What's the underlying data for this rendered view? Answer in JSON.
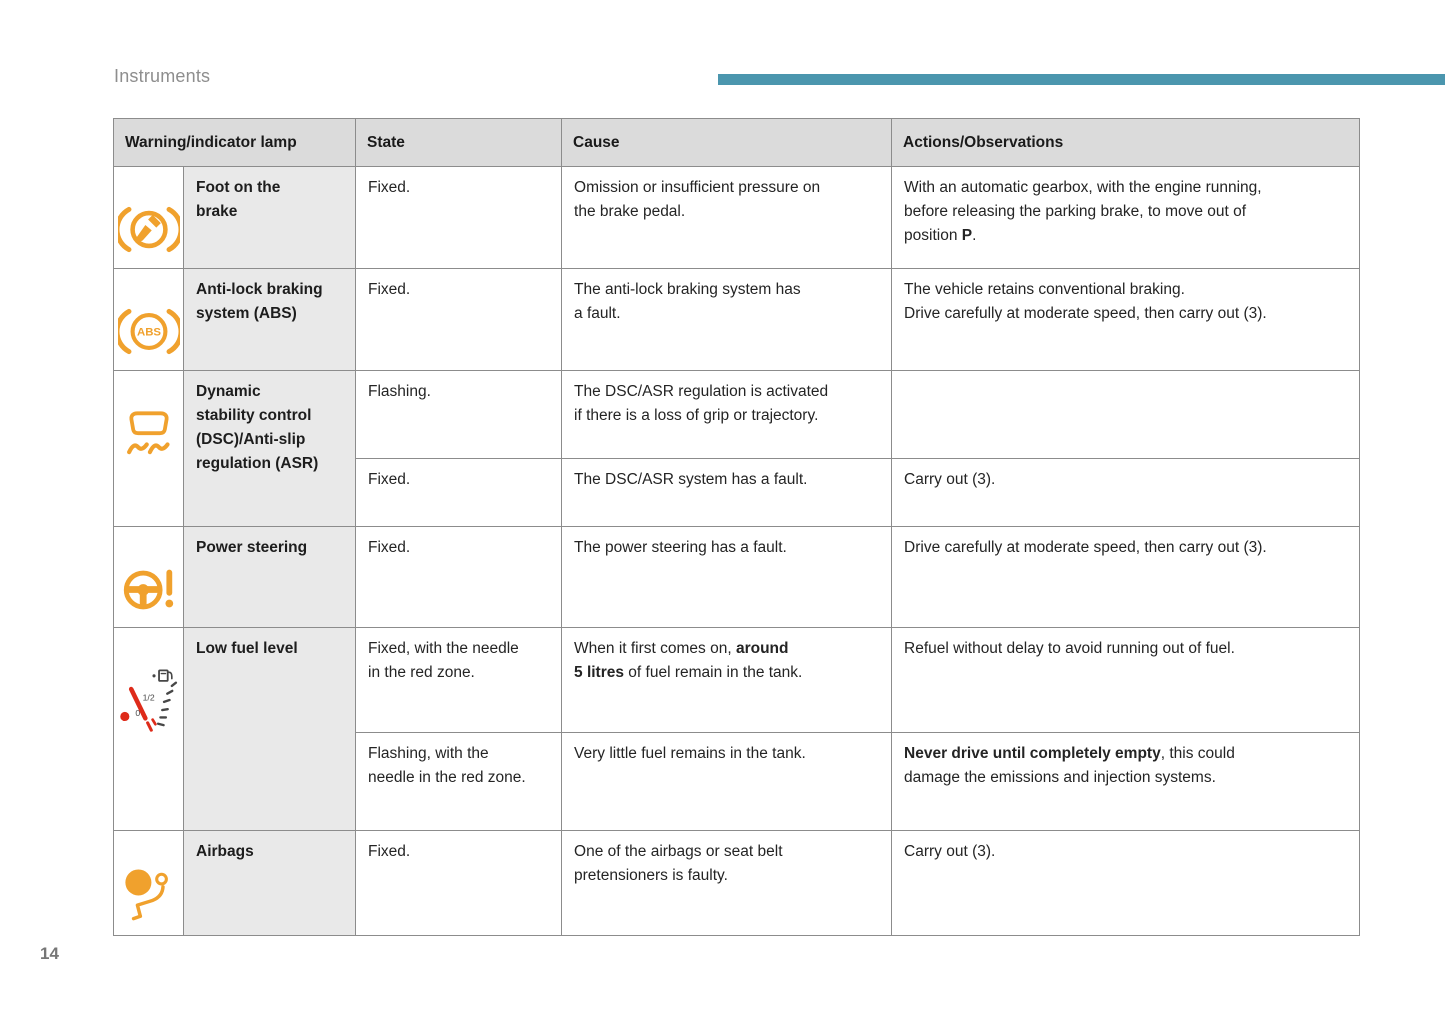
{
  "page": {
    "section_label": "Instruments",
    "page_number": "14"
  },
  "colors": {
    "accent_bar": "#4B96AE",
    "icon_orange": "#F0A12D",
    "needle_red": "#DE2B1A",
    "gauge_dark": "#474747",
    "header_bg": "#DBDBDB",
    "name_cell_bg": "#E9E9E9",
    "table_border": "#8C8C8C"
  },
  "table": {
    "headers": {
      "lamp": "Warning/indicator lamp",
      "state": "State",
      "cause": "Cause",
      "actions": "Actions/Observations"
    },
    "rows": [
      {
        "icon": "foot-on-brake-icon",
        "name": "Foot on the\nbrake",
        "entries": [
          {
            "state": [
              {
                "t": "Fixed."
              }
            ],
            "cause": [
              {
                "t": "Omission or insufficient pressure on\nthe brake pedal."
              }
            ],
            "actions": [
              {
                "t": "With an automatic gearbox, with the engine running,\nbefore releasing the parking brake, to move out of\nposition "
              },
              {
                "t": "P",
                "b": true
              },
              {
                "t": "."
              }
            ]
          }
        ]
      },
      {
        "icon": "abs-icon",
        "icon_text": "ABS",
        "name": "Anti-lock braking\nsystem (ABS)",
        "entries": [
          {
            "state": [
              {
                "t": "Fixed."
              }
            ],
            "cause": [
              {
                "t": "The anti-lock braking system has\na fault."
              }
            ],
            "actions": [
              {
                "t": "The vehicle retains conventional braking.\nDrive carefully at moderate speed, then carry out (3)."
              }
            ]
          }
        ]
      },
      {
        "icon": "dsc-asr-icon",
        "name": "Dynamic\nstability control\n(DSC)/Anti-slip\nregulation (ASR)",
        "entries": [
          {
            "state": [
              {
                "t": "Flashing."
              }
            ],
            "cause": [
              {
                "t": "The DSC/ASR regulation is activated\nif there is a loss of grip or trajectory."
              }
            ],
            "actions": []
          },
          {
            "state": [
              {
                "t": "Fixed."
              }
            ],
            "cause": [
              {
                "t": "The DSC/ASR system has a fault."
              }
            ],
            "actions": [
              {
                "t": "Carry out (3)."
              }
            ]
          }
        ]
      },
      {
        "icon": "power-steering-icon",
        "name": "Power steering",
        "entries": [
          {
            "state": [
              {
                "t": "Fixed."
              }
            ],
            "cause": [
              {
                "t": "The power steering has a fault."
              }
            ],
            "actions": [
              {
                "t": "Drive carefully at moderate speed, then carry out (3)."
              }
            ]
          }
        ]
      },
      {
        "icon": "low-fuel-gauge-icon",
        "gauge_labels": [
          "0",
          "1/2"
        ],
        "name": "Low fuel level",
        "entries": [
          {
            "state": [
              {
                "t": "Fixed, with the needle\nin the red zone."
              }
            ],
            "cause": [
              {
                "t": "When it first comes on, "
              },
              {
                "t": "around\n5 litres",
                "b": true
              },
              {
                "t": " of fuel remain in the tank."
              }
            ],
            "actions": [
              {
                "t": "Refuel without delay to avoid running out of fuel."
              }
            ]
          },
          {
            "state": [
              {
                "t": "Flashing, with the\nneedle in the red zone."
              }
            ],
            "cause": [
              {
                "t": "Very little fuel remains in the tank."
              }
            ],
            "actions": [
              {
                "t": "Never drive until completely empty",
                "b": true
              },
              {
                "t": ", this could\ndamage the emissions and injection systems."
              }
            ]
          }
        ]
      },
      {
        "icon": "airbags-icon",
        "name": "Airbags",
        "entries": [
          {
            "state": [
              {
                "t": "Fixed."
              }
            ],
            "cause": [
              {
                "t": "One of the airbags or seat belt\npretensioners is faulty."
              }
            ],
            "actions": [
              {
                "t": "Carry out (3)."
              }
            ]
          }
        ]
      }
    ]
  }
}
